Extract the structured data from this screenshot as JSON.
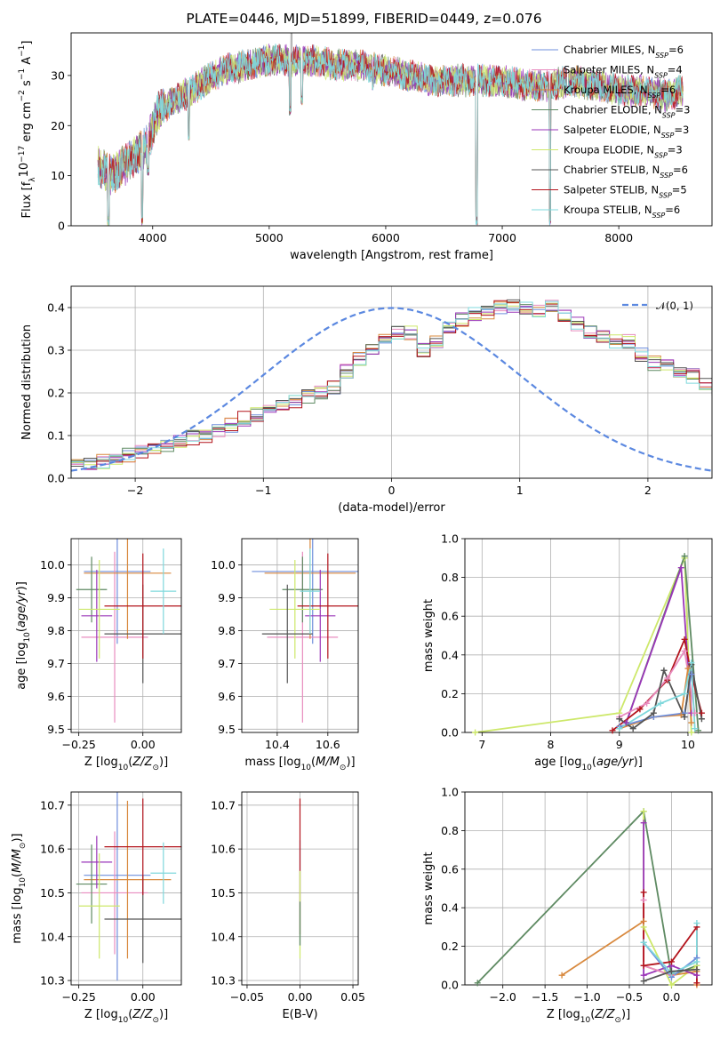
{
  "title": "PLATE=0446, MJD=51899, FIBERID=0449, z=0.076",
  "colors": {
    "Chabrier MILES": "#6f8fdc",
    "Salpeter MILES": "#e88cbf",
    "Kroupa MILES": "#d8893e",
    "Chabrier ELODIE": "#5e8a62",
    "Salpeter ELODIE": "#9a35b8",
    "Kroupa ELODIE": "#cde86a",
    "Chabrier STELIB": "#555555",
    "Salpeter STELIB": "#b3141c",
    "Kroupa STELIB": "#7fd8dc"
  },
  "chart_data": [
    {
      "id": "spectrum",
      "type": "line",
      "xlabel": "wavelength [Angstrom, rest frame]",
      "ylabel": "Flux [f_λ10^-17 erg cm^-2 s^-1 A^-1]",
      "xlim": [
        3300,
        8800
      ],
      "ylim": [
        0,
        38.5
      ],
      "xticks": [
        4000,
        5000,
        6000,
        7000,
        8000
      ],
      "yticks": [
        0,
        10,
        20,
        30
      ],
      "legend_position": "top-right",
      "legend": [
        {
          "name": "Chabrier MILES",
          "n_ssp": 6
        },
        {
          "name": "Salpeter MILES",
          "n_ssp": 4
        },
        {
          "name": "Kroupa MILES",
          "n_ssp": 6
        },
        {
          "name": "Chabrier ELODIE",
          "n_ssp": 3
        },
        {
          "name": "Salpeter ELODIE",
          "n_ssp": 3
        },
        {
          "name": "Kroupa ELODIE",
          "n_ssp": 3
        },
        {
          "name": "Chabrier STELIB",
          "n_ssp": 6
        },
        {
          "name": "Salpeter STELIB",
          "n_ssp": 5
        },
        {
          "name": "Kroupa STELIB",
          "n_ssp": 6
        }
      ],
      "continuum": [
        [
          3530,
          12
        ],
        [
          3650,
          10
        ],
        [
          3800,
          13
        ],
        [
          3950,
          16
        ],
        [
          4050,
          23
        ],
        [
          4200,
          25
        ],
        [
          4400,
          28
        ],
        [
          4600,
          31
        ],
        [
          4800,
          32
        ],
        [
          5000,
          33
        ],
        [
          5200,
          33
        ],
        [
          5400,
          33
        ],
        [
          5600,
          32
        ],
        [
          5800,
          32
        ],
        [
          6000,
          31
        ],
        [
          6200,
          30
        ],
        [
          6400,
          29
        ],
        [
          6600,
          29
        ],
        [
          6800,
          29
        ],
        [
          7000,
          29
        ],
        [
          7200,
          28
        ],
        [
          7400,
          28
        ],
        [
          7600,
          29
        ],
        [
          7800,
          28
        ],
        [
          8000,
          27
        ],
        [
          8200,
          27
        ],
        [
          8400,
          26
        ],
        [
          8550,
          27
        ]
      ],
      "dips": [
        [
          3620,
          0
        ],
        [
          3910,
          0
        ],
        [
          3960,
          10
        ],
        [
          4310,
          17
        ],
        [
          5180,
          22
        ],
        [
          5280,
          24
        ],
        [
          5890,
          27
        ],
        [
          6780,
          0
        ],
        [
          7410,
          0
        ],
        [
          7560,
          26
        ]
      ],
      "spikes": [
        [
          5190,
          39
        ]
      ]
    },
    {
      "id": "residuals",
      "type": "histogram",
      "xlabel": "(data-model)/error",
      "ylabel": "Normed distribution",
      "xlim": [
        -2.5,
        2.5
      ],
      "ylim": [
        0,
        0.45
      ],
      "xticks": [
        -2,
        -1,
        0,
        1,
        2
      ],
      "yticks": [
        0.0,
        0.1,
        0.2,
        0.3,
        0.4
      ],
      "legend_label": "𝒩(0, 1)",
      "bin_width": 0.1,
      "bin_start": -2.5,
      "base_values": [
        0.03,
        0.035,
        0.04,
        0.05,
        0.055,
        0.06,
        0.07,
        0.08,
        0.09,
        0.095,
        0.1,
        0.11,
        0.125,
        0.14,
        0.15,
        0.16,
        0.17,
        0.18,
        0.19,
        0.2,
        0.215,
        0.25,
        0.28,
        0.3,
        0.32,
        0.34,
        0.34,
        0.3,
        0.32,
        0.35,
        0.37,
        0.385,
        0.39,
        0.4,
        0.405,
        0.4,
        0.39,
        0.4,
        0.38,
        0.36,
        0.34,
        0.33,
        0.32,
        0.32,
        0.29,
        0.27,
        0.26,
        0.25,
        0.24,
        0.22,
        0.21,
        0.2,
        0.19,
        0.18,
        0.17,
        0.16,
        0.15,
        0.14,
        0.13,
        0.12,
        0.11,
        0.1,
        0.09,
        0.08,
        0.07,
        0.065,
        0.06,
        0.05,
        0.045,
        0.04,
        0.035,
        0.03,
        0.03,
        0.025
      ]
    },
    {
      "id": "age-vs-Z",
      "type": "errorbar",
      "xlabel": "Z [log10(Z/Z⊙)]",
      "ylabel": "age [log10(age/yr)]",
      "xlim": [
        -0.28,
        0.15
      ],
      "ylim": [
        9.49,
        10.08
      ],
      "xticks": [
        -0.25,
        0.0
      ],
      "yticks": [
        9.5,
        9.6,
        9.7,
        9.8,
        9.9,
        10.0
      ],
      "points": [
        {
          "series": "Chabrier MILES",
          "x": -0.1,
          "y": 9.98,
          "xerr": 0.13,
          "yerr": 0.22
        },
        {
          "series": "Salpeter MILES",
          "x": -0.11,
          "y": 9.78,
          "xerr": 0.13,
          "yerr": 0.26
        },
        {
          "series": "Kroupa MILES",
          "x": -0.06,
          "y": 9.975,
          "xerr": 0.17,
          "yerr": 0.2
        },
        {
          "series": "Chabrier ELODIE",
          "x": -0.2,
          "y": 9.925,
          "xerr": 0.06,
          "yerr": 0.1
        },
        {
          "series": "Salpeter ELODIE",
          "x": -0.18,
          "y": 9.845,
          "xerr": 0.06,
          "yerr": 0.14
        },
        {
          "series": "Kroupa ELODIE",
          "x": -0.17,
          "y": 9.865,
          "xerr": 0.08,
          "yerr": 0.15
        },
        {
          "series": "Chabrier STELIB",
          "x": 0.0,
          "y": 9.79,
          "xerr": 0.15,
          "yerr": 0.15
        },
        {
          "series": "Salpeter STELIB",
          "x": 0.0,
          "y": 9.875,
          "xerr": 0.15,
          "yerr": 0.16
        },
        {
          "series": "Kroupa STELIB",
          "x": 0.08,
          "y": 9.92,
          "xerr": 0.05,
          "yerr": 0.13
        }
      ]
    },
    {
      "id": "age-vs-mass",
      "type": "errorbar",
      "xlabel": "mass [log10(M/M⊙)]",
      "ylabel": "",
      "xlim": [
        10.26,
        10.72
      ],
      "ylim": [
        9.49,
        10.08
      ],
      "xticks": [
        10.4,
        10.6
      ],
      "yticks": [
        9.5,
        9.6,
        9.7,
        9.8,
        9.9,
        10.0
      ],
      "points": [
        {
          "series": "Chabrier MILES",
          "x": 10.54,
          "y": 9.98,
          "xerr": 0.24,
          "yerr": 0.22
        },
        {
          "series": "Salpeter MILES",
          "x": 10.5,
          "y": 9.78,
          "xerr": 0.14,
          "yerr": 0.26
        },
        {
          "series": "Kroupa MILES",
          "x": 10.53,
          "y": 9.975,
          "xerr": 0.18,
          "yerr": 0.2
        },
        {
          "series": "Chabrier ELODIE",
          "x": 10.5,
          "y": 9.925,
          "xerr": 0.08,
          "yerr": 0.1
        },
        {
          "series": "Salpeter ELODIE",
          "x": 10.57,
          "y": 9.845,
          "xerr": 0.06,
          "yerr": 0.14
        },
        {
          "series": "Kroupa ELODIE",
          "x": 10.47,
          "y": 9.865,
          "xerr": 0.1,
          "yerr": 0.15
        },
        {
          "series": "Chabrier STELIB",
          "x": 10.44,
          "y": 9.79,
          "xerr": 0.1,
          "yerr": 0.15
        },
        {
          "series": "Salpeter STELIB",
          "x": 10.6,
          "y": 9.875,
          "xerr": 0.12,
          "yerr": 0.16
        },
        {
          "series": "Kroupa STELIB",
          "x": 10.53,
          "y": 9.92,
          "xerr": 0.04,
          "yerr": 0.13
        }
      ]
    },
    {
      "id": "mass-vs-Z",
      "type": "errorbar",
      "xlabel": "Z [log10(Z/Z⊙)]",
      "ylabel": "mass [log10(M/M⊙)]",
      "xlim": [
        -0.28,
        0.15
      ],
      "ylim": [
        10.29,
        10.73
      ],
      "xticks": [
        -0.25,
        0.0
      ],
      "yticks": [
        10.3,
        10.4,
        10.5,
        10.6,
        10.7
      ],
      "points": [
        {
          "series": "Chabrier MILES",
          "x": -0.1,
          "y": 10.54,
          "xerr": 0.13,
          "yerr": 0.24
        },
        {
          "series": "Salpeter MILES",
          "x": -0.11,
          "y": 10.5,
          "xerr": 0.13,
          "yerr": 0.14
        },
        {
          "series": "Kroupa MILES",
          "x": -0.06,
          "y": 10.53,
          "xerr": 0.17,
          "yerr": 0.18
        },
        {
          "series": "Chabrier ELODIE",
          "x": -0.2,
          "y": 10.52,
          "xerr": 0.06,
          "yerr": 0.09
        },
        {
          "series": "Salpeter ELODIE",
          "x": -0.18,
          "y": 10.57,
          "xerr": 0.06,
          "yerr": 0.06
        },
        {
          "series": "Kroupa ELODIE",
          "x": -0.17,
          "y": 10.47,
          "xerr": 0.08,
          "yerr": 0.12
        },
        {
          "series": "Chabrier STELIB",
          "x": 0.0,
          "y": 10.44,
          "xerr": 0.15,
          "yerr": 0.1
        },
        {
          "series": "Salpeter STELIB",
          "x": 0.0,
          "y": 10.605,
          "xerr": 0.15,
          "yerr": 0.11
        },
        {
          "series": "Kroupa STELIB",
          "x": 0.08,
          "y": 10.545,
          "xerr": 0.05,
          "yerr": 0.07
        }
      ]
    },
    {
      "id": "mass-vs-EBV",
      "type": "errorbar",
      "xlabel": "E(B-V)",
      "ylabel": "",
      "xlim": [
        -0.055,
        0.055
      ],
      "ylim": [
        10.29,
        10.73
      ],
      "xticks": [
        -0.05,
        0.0,
        0.05
      ],
      "yticks": [
        10.3,
        10.4,
        10.5,
        10.6,
        10.7
      ],
      "points": [
        {
          "series": "Chabrier MILES",
          "x": 0.0,
          "y": 10.5,
          "xerr": 0.0,
          "yerr": 0.12
        },
        {
          "series": "Salpeter STELIB",
          "x": 0.0,
          "y": 10.56,
          "xerr": 0.0,
          "yerr": 0.155
        },
        {
          "series": "Kroupa ELODIE",
          "x": 0.0,
          "y": 10.45,
          "xerr": 0.0,
          "yerr": 0.1
        },
        {
          "series": "Chabrier ELODIE",
          "x": 0.0,
          "y": 10.43,
          "xerr": 0.0,
          "yerr": 0.05
        }
      ]
    },
    {
      "id": "weight-vs-age",
      "type": "line",
      "xlabel": "age [log10(age/yr)]",
      "ylabel": "mass weight",
      "xlim": [
        6.75,
        10.35
      ],
      "ylim": [
        0,
        1.0
      ],
      "xticks": [
        7,
        8,
        9,
        10
      ],
      "yticks": [
        0.0,
        0.2,
        0.4,
        0.6,
        0.8,
        1.0
      ],
      "series": [
        {
          "name": "Kroupa ELODIE",
          "x": [
            6.9,
            9.0,
            9.95,
            10.05
          ],
          "y": [
            0.0,
            0.1,
            0.9,
            0.0
          ]
        },
        {
          "name": "Chabrier ELODIE",
          "x": [
            9.1,
            9.95,
            10.15
          ],
          "y": [
            0.05,
            0.91,
            0.01
          ]
        },
        {
          "name": "Salpeter ELODIE",
          "x": [
            9.1,
            9.9,
            10.05
          ],
          "y": [
            0.05,
            0.85,
            0.1
          ]
        },
        {
          "name": "Salpeter STELIB",
          "x": [
            8.9,
            9.3,
            9.7,
            9.95,
            10.05,
            10.2
          ],
          "y": [
            0.01,
            0.12,
            0.27,
            0.48,
            0.3,
            0.1
          ]
        },
        {
          "name": "Salpeter MILES",
          "x": [
            9.0,
            9.4,
            9.7,
            9.95,
            10.1
          ],
          "y": [
            0.08,
            0.15,
            0.28,
            0.42,
            0.1
          ]
        },
        {
          "name": "Kroupa MILES",
          "x": [
            9.0,
            9.5,
            9.9,
            10.0,
            10.05
          ],
          "y": [
            0.02,
            0.08,
            0.09,
            0.33,
            0.05
          ]
        },
        {
          "name": "Chabrier MILES",
          "x": [
            9.0,
            9.5,
            9.95,
            10.05
          ],
          "y": [
            0.03,
            0.08,
            0.1,
            0.3
          ]
        },
        {
          "name": "Chabrier STELIB",
          "x": [
            9.0,
            9.2,
            9.5,
            9.65,
            9.95,
            10.05,
            10.2
          ],
          "y": [
            0.07,
            0.02,
            0.1,
            0.32,
            0.08,
            0.35,
            0.07
          ]
        },
        {
          "name": "Kroupa STELIB",
          "x": [
            9.0,
            9.6,
            9.95,
            10.05,
            10.1
          ],
          "y": [
            0.02,
            0.15,
            0.2,
            0.36,
            0.02
          ]
        }
      ]
    },
    {
      "id": "weight-vs-Z",
      "type": "line",
      "xlabel": "Z [log10(Z/Z⊙)]",
      "ylabel": "mass weight",
      "xlim": [
        -2.45,
        0.48
      ],
      "ylim": [
        0,
        1.0
      ],
      "xticks": [
        -2.0,
        -1.5,
        -1.0,
        -0.5,
        0.0
      ],
      "yticks": [
        0.0,
        0.2,
        0.4,
        0.6,
        0.8,
        1.0
      ],
      "series": [
        {
          "name": "Chabrier ELODIE",
          "x": [
            -2.3,
            -0.33,
            0.0,
            0.3
          ],
          "y": [
            0.01,
            0.9,
            0.05,
            0.1
          ]
        },
        {
          "name": "Kroupa ELODIE",
          "x": [
            -0.33,
            -0.33,
            0.0,
            0.3
          ],
          "y": [
            0.9,
            0.3,
            0.0,
            0.1
          ]
        },
        {
          "name": "Kroupa MILES",
          "x": [
            -1.3,
            -0.33,
            -0.33,
            0.0,
            0.3,
            0.3
          ],
          "y": [
            0.05,
            0.33,
            0.1,
            0.05,
            0.07,
            0.0
          ]
        },
        {
          "name": "Salpeter ELODIE",
          "x": [
            -0.33,
            -0.33,
            0.0,
            0.3
          ],
          "y": [
            0.84,
            0.05,
            0.1,
            0.05
          ]
        },
        {
          "name": "Salpeter MILES",
          "x": [
            -0.33,
            -0.33,
            0.0
          ],
          "y": [
            0.44,
            0.1,
            0.05
          ]
        },
        {
          "name": "Salpeter STELIB",
          "x": [
            -0.33,
            -0.33,
            0.0,
            0.3,
            0.3
          ],
          "y": [
            0.48,
            0.1,
            0.12,
            0.3,
            0.01
          ]
        },
        {
          "name": "Chabrier MILES",
          "x": [
            -0.33,
            0.0,
            0.3
          ],
          "y": [
            0.22,
            0.04,
            0.14
          ]
        },
        {
          "name": "Kroupa STELIB",
          "x": [
            -0.33,
            0.0,
            0.3,
            0.3
          ],
          "y": [
            0.22,
            0.06,
            0.12,
            0.32
          ]
        },
        {
          "name": "Chabrier STELIB",
          "x": [
            -0.33,
            0.0,
            0.3
          ],
          "y": [
            0.02,
            0.07,
            0.08
          ]
        }
      ]
    }
  ]
}
